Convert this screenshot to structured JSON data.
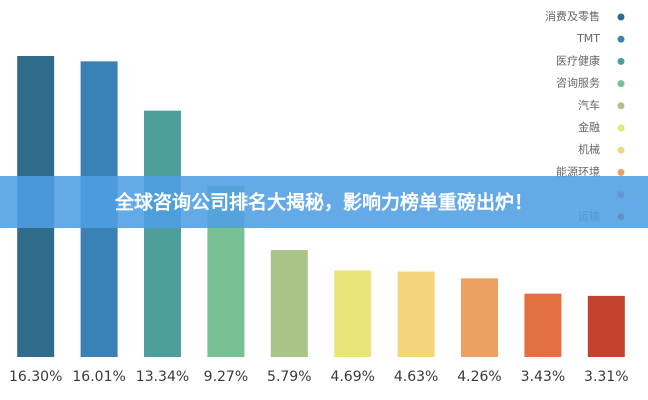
{
  "chart_data": {
    "type": "bar",
    "categories": [
      "消费及零售",
      "TMT",
      "医疗健康",
      "咨询服务",
      "汽车",
      "金融",
      "机械",
      "能源环境",
      null,
      "运输"
    ],
    "values": [
      16.3,
      16.01,
      13.34,
      9.27,
      5.79,
      4.69,
      4.63,
      4.26,
      3.43,
      3.31
    ],
    "value_labels": [
      "16.30%",
      "16.01%",
      "13.34%",
      "9.27%",
      "5.79%",
      "4.69%",
      "4.63%",
      "4.26%",
      "3.43%",
      "3.31%"
    ],
    "colors": [
      "#2f6b8a",
      "#3a82b5",
      "#4d9e9c",
      "#78c095",
      "#a9c486",
      "#e9e47c",
      "#f5d57c",
      "#eba061",
      "#e26f42",
      "#c2412f"
    ],
    "legend": "top-right"
  },
  "overlay": {
    "headline": "全球咨询公司排名大揭秘，影响力榜单重磅出炉！"
  }
}
